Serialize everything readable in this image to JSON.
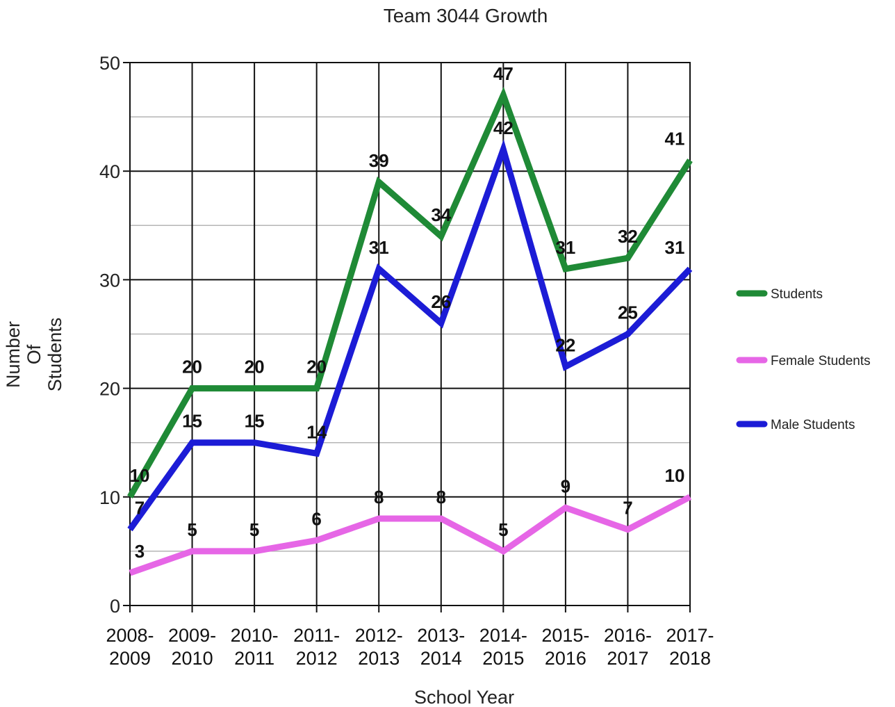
{
  "chart_data": {
    "type": "line",
    "title": "Team 3044 Growth",
    "xlabel": "School Year",
    "ylabel": [
      "Number",
      "Of",
      "Students"
    ],
    "categories": [
      [
        "2008-",
        "2009"
      ],
      [
        "2009-",
        "2010"
      ],
      [
        "2010-",
        "2011"
      ],
      [
        "2011-",
        "2012"
      ],
      [
        "2012-",
        "2013"
      ],
      [
        "2013-",
        "2014"
      ],
      [
        "2014-",
        "2015"
      ],
      [
        "2015-",
        "2016"
      ],
      [
        "2016-",
        "2017"
      ],
      [
        "2017-",
        "2018"
      ]
    ],
    "ylim": [
      0,
      50
    ],
    "yticks": [
      0,
      10,
      20,
      30,
      40,
      50
    ],
    "grid": true,
    "legend_position": "right",
    "series": [
      {
        "name": "Students",
        "color": "#1f8a36",
        "values": [
          10,
          20,
          20,
          20,
          39,
          34,
          47,
          31,
          32,
          41
        ]
      },
      {
        "name": "Female Students",
        "color": "#e666e6",
        "values": [
          3,
          5,
          5,
          6,
          8,
          8,
          5,
          9,
          7,
          10
        ]
      },
      {
        "name": "Male Students",
        "color": "#1c1cd6",
        "values": [
          7,
          15,
          15,
          14,
          31,
          26,
          42,
          22,
          25,
          31
        ]
      }
    ]
  }
}
